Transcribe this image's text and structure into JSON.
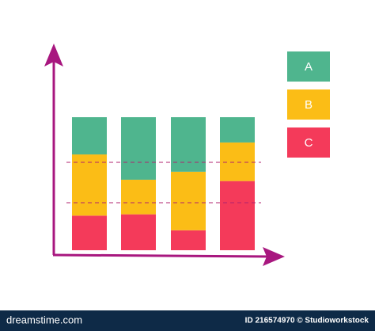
{
  "chart_data": {
    "type": "stacked-bar",
    "categories": [
      null,
      null,
      null,
      null
    ],
    "series": [
      {
        "name": "C",
        "color": "#f43a5a",
        "values": [
          26,
          27,
          15,
          52
        ]
      },
      {
        "name": "B",
        "color": "#fbbd16",
        "values": [
          46,
          26,
          44,
          29
        ]
      },
      {
        "name": "A",
        "color": "#4fb58e",
        "values": [
          28,
          47,
          41,
          19
        ]
      }
    ],
    "ylim": [
      0,
      100
    ],
    "grid": false,
    "legend": "top-right",
    "axis_color": "#a8177f"
  },
  "footer": {
    "brand": "dreamstime.com",
    "credit": "ID 216574970 © Studioworkstock"
  }
}
